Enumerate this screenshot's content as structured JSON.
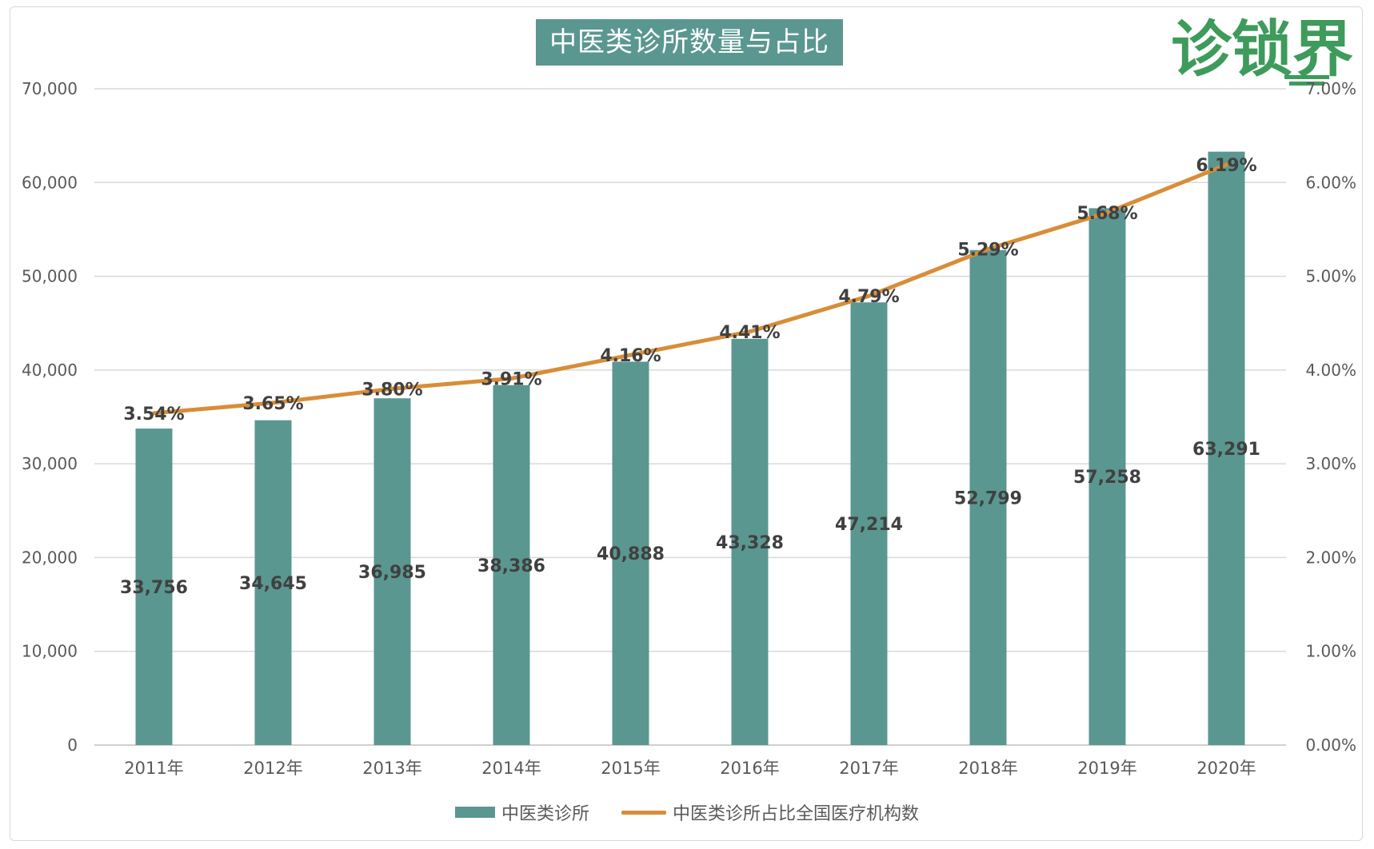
{
  "chart_data": {
    "type": "bar",
    "title": "中医类诊所数量与占比",
    "categories": [
      "2011年",
      "2012年",
      "2013年",
      "2014年",
      "2015年",
      "2016年",
      "2017年",
      "2018年",
      "2019年",
      "2020年"
    ],
    "series": [
      {
        "name": "中医类诊所",
        "type": "bar",
        "axis": "left",
        "values": [
          33756,
          34645,
          36985,
          38386,
          40888,
          43328,
          47214,
          52799,
          57258,
          63291
        ],
        "labels": [
          "33,756",
          "34,645",
          "36,985",
          "38,386",
          "40,888",
          "43,328",
          "47,214",
          "52,799",
          "57,258",
          "63,291"
        ]
      },
      {
        "name": "中医类诊所占比全国医疗机构数",
        "type": "line",
        "axis": "right",
        "values": [
          3.54,
          3.65,
          3.8,
          3.91,
          4.16,
          4.41,
          4.79,
          5.29,
          5.68,
          6.19
        ],
        "labels": [
          "3.54%",
          "3.65%",
          "3.80%",
          "3.91%",
          "4.16%",
          "4.41%",
          "4.79%",
          "5.29%",
          "5.68%",
          "6.19%"
        ]
      }
    ],
    "y_left": {
      "ylim": [
        0,
        70000
      ],
      "ticks": [
        "0",
        "10,000",
        "20,000",
        "30,000",
        "40,000",
        "50,000",
        "60,000",
        "70,000"
      ]
    },
    "y_right": {
      "ylim": [
        0,
        7
      ],
      "ticks": [
        "0.00%",
        "1.00%",
        "2.00%",
        "3.00%",
        "4.00%",
        "5.00%",
        "6.00%",
        "7.00%"
      ]
    },
    "grid": true,
    "legend_position": "bottom"
  },
  "logo_text": "诊锁界",
  "colors": {
    "bar": "#5a9790",
    "line": "#d88d38",
    "title_bg": "#5a9790",
    "logo": "#3e9b5b",
    "grid": "#d9d9d9",
    "axis_text": "#595959",
    "label_text": "#404040"
  }
}
